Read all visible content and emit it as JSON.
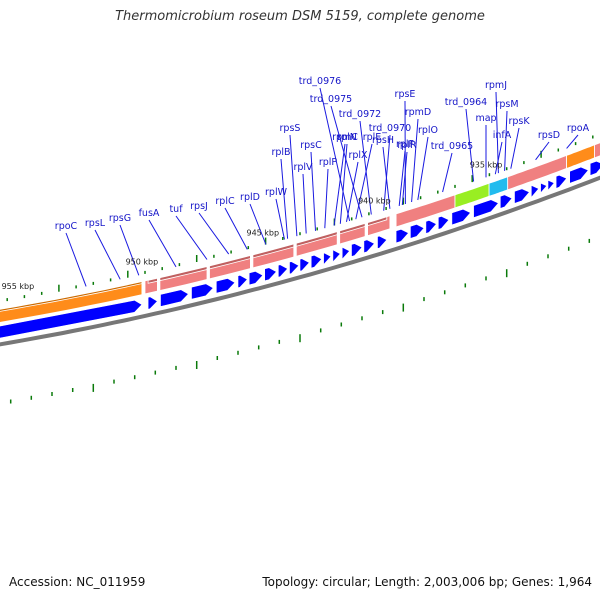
{
  "title": "Thermomicrobium roseum DSM 5159, complete genome",
  "footer": {
    "accession": "Accession: NC_011959",
    "stats": "Topology: circular; Length: 2,003,006 bp; Genes: 1,964"
  },
  "colors": {
    "gene_label": "#1515c8",
    "leader": "#1a1ae0",
    "cds_forward": "#0000ff",
    "rrna_feature": "#f08080",
    "orange_feature": "#ff8c1a",
    "green_feature": "#99ee22",
    "cyan_feature": "#22bbee",
    "tick_marks": "#0a7a0a",
    "backbone": "#777777"
  },
  "kbp_labels": [
    "955 kbp",
    "950 kbp",
    "945 kbp",
    "940 kbp",
    "935 kbp"
  ],
  "gene_labels": [
    "rpoC",
    "rpsL",
    "rpsG",
    "fusA",
    "tuf",
    "rpsJ",
    "rplC",
    "rplD",
    "rplW",
    "rplB",
    "rpsS",
    "rplV",
    "rpsC",
    "rplP",
    "rpmC",
    "rplN",
    "rplX",
    "rplE",
    "trd_0976",
    "trd_0975",
    "trd_0972",
    "trd_0970",
    "rpsH",
    "rplF",
    "rplR",
    "rpsE",
    "rpmD",
    "rplO",
    "trd_0965",
    "trd_0964",
    "map",
    "infA",
    "rpmJ",
    "rpsM",
    "rpsK",
    "rpsD",
    "rpoA"
  ]
}
